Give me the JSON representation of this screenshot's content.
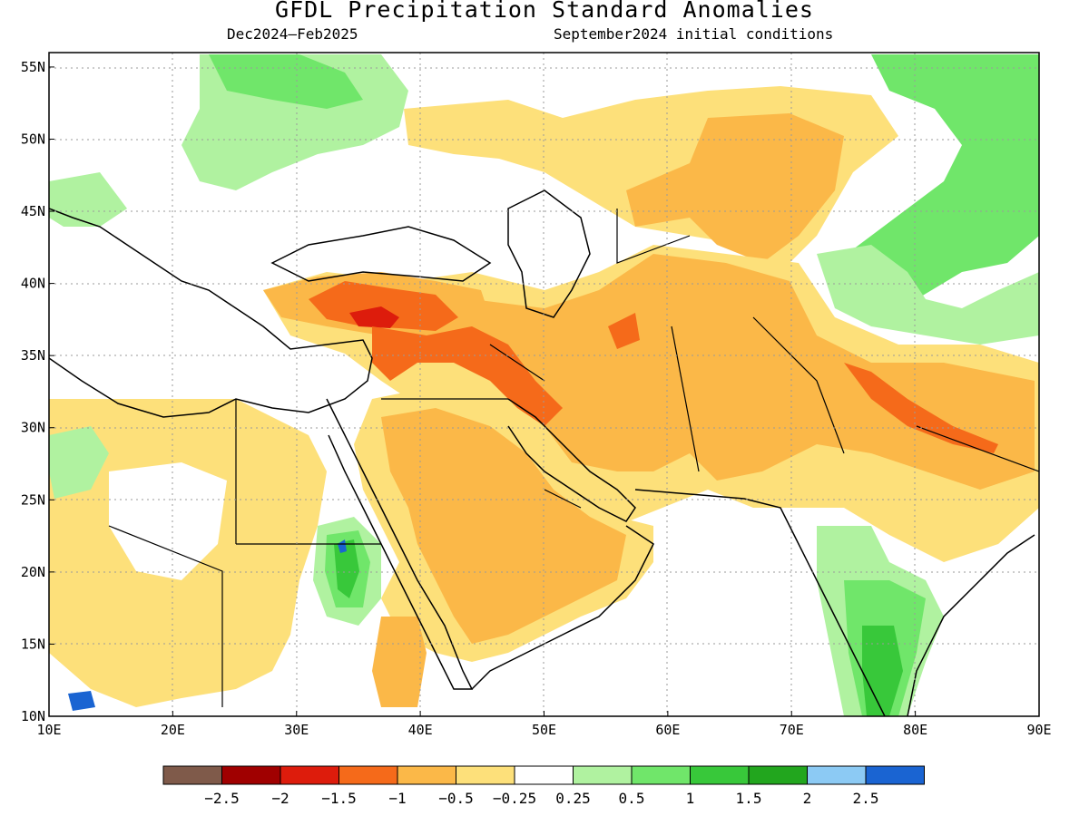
{
  "title": "GFDL Precipitation Standard Anomalies",
  "period": "Dec2024–Feb2025",
  "initial_conditions": "September2024 initial conditions",
  "map": {
    "lon_range": [
      10,
      90
    ],
    "lat_range": [
      10,
      56
    ],
    "lon_ticks": [
      "10E",
      "20E",
      "30E",
      "40E",
      "50E",
      "60E",
      "70E",
      "80E",
      "90E"
    ],
    "lat_ticks": [
      "10N",
      "15N",
      "20N",
      "25N",
      "30N",
      "35N",
      "40N",
      "45N",
      "50N",
      "55N"
    ],
    "gridlines": "dotted"
  },
  "colorbar": {
    "colors": [
      "#7f5a4a",
      "#a00000",
      "#dd1c0c",
      "#f56a1a",
      "#fbb848",
      "#fde07a",
      "#ffffff",
      "#b0f2a0",
      "#70e66a",
      "#38c83a",
      "#22a61e",
      "#8ccaf4",
      "#1a64d2"
    ],
    "labels": [
      "−2.5",
      "−2",
      "−1.5",
      "−1",
      "−0.5",
      "−0.25",
      "0.25",
      "0.5",
      "1",
      "1.5",
      "2",
      "2.5"
    ]
  },
  "regions": [
    {
      "name": "iran-turkmen-afghan-dry",
      "color": "#fbb848"
    },
    {
      "name": "arabia-dry",
      "color": "#fbb848"
    },
    {
      "name": "turkey-core-dry",
      "color": "#f56a1a"
    },
    {
      "name": "kazakhstan-dry",
      "color": "#fbb848"
    },
    {
      "name": "india-south-wet",
      "color": "#70e66a"
    },
    {
      "name": "siberia-wet",
      "color": "#70e66a"
    },
    {
      "name": "sudan-wet",
      "color": "#38c83a"
    }
  ]
}
